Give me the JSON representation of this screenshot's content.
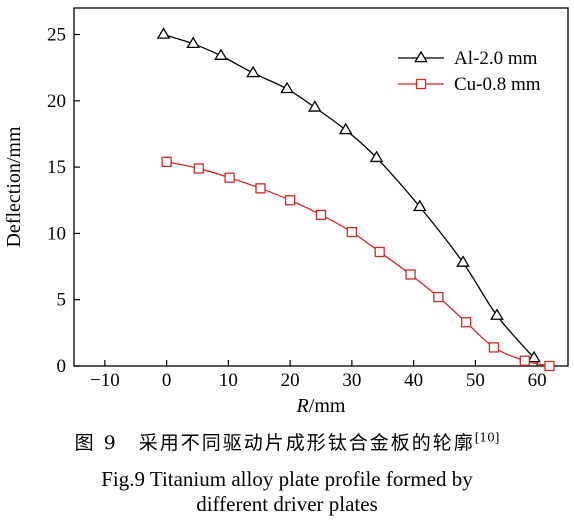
{
  "chart_data": {
    "type": "line",
    "title": "",
    "xlabel_italic": "R",
    "xlabel_unit": "/mm",
    "ylabel": "Deflection/mm",
    "xlim": [
      -15,
      65
    ],
    "ylim": [
      0,
      27
    ],
    "xticks": [
      -10,
      0,
      10,
      20,
      30,
      40,
      50,
      60
    ],
    "yticks": [
      0,
      5,
      10,
      15,
      20,
      25
    ],
    "grid": false,
    "legend": "top-right",
    "series": [
      {
        "name": "Al-2.0 mm",
        "color": "#000000",
        "marker": "triangle",
        "x": [
          -0.5,
          4.3,
          8.8,
          14,
          19.5,
          24,
          29,
          34,
          41,
          48,
          53.5,
          59.5
        ],
        "y": [
          25.0,
          24.3,
          23.4,
          22.1,
          20.9,
          19.5,
          17.8,
          15.7,
          12.0,
          7.8,
          3.8,
          0.6
        ]
      },
      {
        "name": "Cu-0.8 mm",
        "color": "#d0282c",
        "marker": "square",
        "x": [
          0,
          5.2,
          10.2,
          15.2,
          20,
          25,
          30,
          34.5,
          39.5,
          44,
          48.5,
          53,
          58,
          62
        ],
        "y": [
          15.4,
          14.9,
          14.2,
          13.4,
          12.5,
          11.4,
          10.1,
          8.6,
          6.9,
          5.2,
          3.3,
          1.4,
          0.4,
          0.0
        ]
      }
    ]
  },
  "caption": {
    "cn": "图 9　采用不同驱动片成形钛合金板的轮廓",
    "cn_ref": "[10]",
    "en_line1": "Fig.9 Titanium alloy plate profile formed by",
    "en_line2": "different driver plates"
  }
}
